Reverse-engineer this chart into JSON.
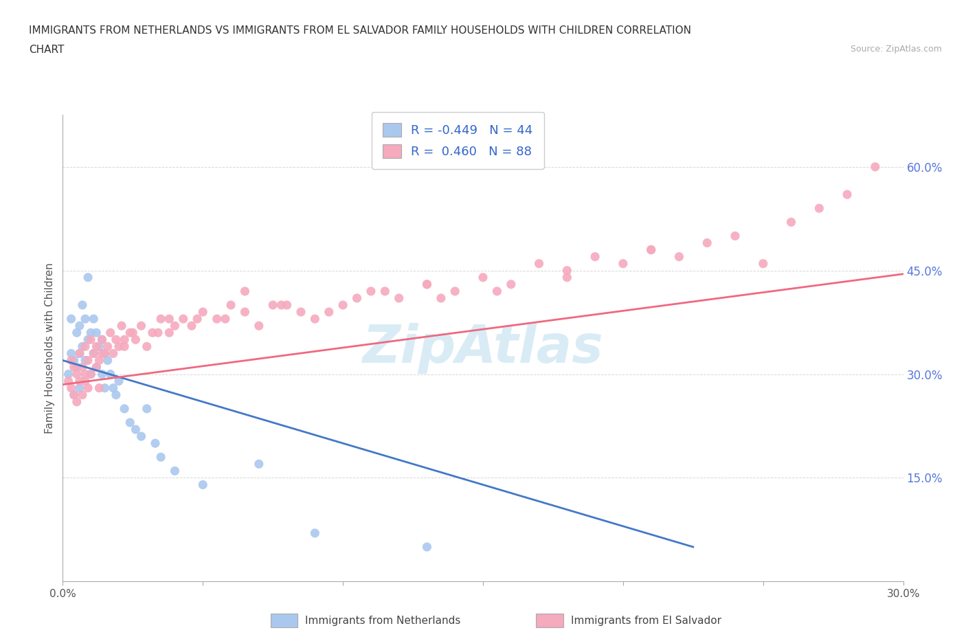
{
  "title_line1": "IMMIGRANTS FROM NETHERLANDS VS IMMIGRANTS FROM EL SALVADOR FAMILY HOUSEHOLDS WITH CHILDREN CORRELATION",
  "title_line2": "CHART",
  "source": "Source: ZipAtlas.com",
  "ylabel": "Family Households with Children",
  "xlim": [
    0.0,
    0.3
  ],
  "ylim": [
    0.0,
    0.675
  ],
  "xticks": [
    0.0,
    0.05,
    0.1,
    0.15,
    0.2,
    0.25,
    0.3
  ],
  "yticks": [
    0.15,
    0.3,
    0.45,
    0.6
  ],
  "legend_r1": "R = -0.449",
  "legend_n1": "N = 44",
  "legend_r2": "R =  0.460",
  "legend_n2": "N = 88",
  "color_netherlands": "#aac8ee",
  "color_el_salvador": "#f5aabe",
  "color_line_netherlands": "#4478c8",
  "color_line_el_salvador": "#f06880",
  "watermark": "ZipAtlas",
  "nl_line_x0": 0.0,
  "nl_line_y0": 0.32,
  "nl_line_x1": 0.225,
  "nl_line_y1": 0.05,
  "sv_line_x0": 0.0,
  "sv_line_y0": 0.285,
  "sv_line_x1": 0.3,
  "sv_line_y1": 0.445,
  "netherlands_x": [
    0.002,
    0.003,
    0.003,
    0.004,
    0.004,
    0.005,
    0.005,
    0.006,
    0.006,
    0.006,
    0.007,
    0.007,
    0.008,
    0.008,
    0.009,
    0.009,
    0.01,
    0.01,
    0.011,
    0.011,
    0.012,
    0.012,
    0.013,
    0.014,
    0.014,
    0.015,
    0.015,
    0.016,
    0.017,
    0.018,
    0.019,
    0.02,
    0.022,
    0.024,
    0.026,
    0.028,
    0.03,
    0.033,
    0.035,
    0.04,
    0.05,
    0.07,
    0.09,
    0.13
  ],
  "netherlands_y": [
    0.3,
    0.33,
    0.38,
    0.32,
    0.27,
    0.36,
    0.31,
    0.37,
    0.33,
    0.28,
    0.4,
    0.34,
    0.38,
    0.32,
    0.44,
    0.35,
    0.36,
    0.3,
    0.38,
    0.33,
    0.36,
    0.31,
    0.34,
    0.35,
    0.3,
    0.33,
    0.28,
    0.32,
    0.3,
    0.28,
    0.27,
    0.29,
    0.25,
    0.23,
    0.22,
    0.21,
    0.25,
    0.2,
    0.18,
    0.16,
    0.14,
    0.17,
    0.07,
    0.05
  ],
  "el_salvador_x": [
    0.002,
    0.003,
    0.003,
    0.004,
    0.005,
    0.005,
    0.006,
    0.006,
    0.007,
    0.007,
    0.008,
    0.008,
    0.009,
    0.009,
    0.01,
    0.01,
    0.011,
    0.012,
    0.013,
    0.013,
    0.014,
    0.015,
    0.016,
    0.017,
    0.018,
    0.019,
    0.02,
    0.021,
    0.022,
    0.024,
    0.026,
    0.028,
    0.03,
    0.032,
    0.035,
    0.038,
    0.04,
    0.043,
    0.046,
    0.05,
    0.055,
    0.06,
    0.065,
    0.07,
    0.075,
    0.08,
    0.09,
    0.1,
    0.11,
    0.12,
    0.13,
    0.14,
    0.15,
    0.16,
    0.17,
    0.18,
    0.19,
    0.2,
    0.21,
    0.22,
    0.23,
    0.24,
    0.25,
    0.26,
    0.27,
    0.28,
    0.29,
    0.21,
    0.18,
    0.155,
    0.13,
    0.105,
    0.085,
    0.065,
    0.048,
    0.034,
    0.022,
    0.014,
    0.008,
    0.004,
    0.012,
    0.025,
    0.038,
    0.058,
    0.078,
    0.095,
    0.115,
    0.135
  ],
  "el_salvador_y": [
    0.29,
    0.32,
    0.28,
    0.31,
    0.3,
    0.26,
    0.33,
    0.29,
    0.31,
    0.27,
    0.34,
    0.3,
    0.32,
    0.28,
    0.35,
    0.3,
    0.33,
    0.34,
    0.32,
    0.28,
    0.35,
    0.33,
    0.34,
    0.36,
    0.33,
    0.35,
    0.34,
    0.37,
    0.35,
    0.36,
    0.35,
    0.37,
    0.34,
    0.36,
    0.38,
    0.36,
    0.37,
    0.38,
    0.37,
    0.39,
    0.38,
    0.4,
    0.39,
    0.37,
    0.4,
    0.4,
    0.38,
    0.4,
    0.42,
    0.41,
    0.43,
    0.42,
    0.44,
    0.43,
    0.46,
    0.45,
    0.47,
    0.46,
    0.48,
    0.47,
    0.49,
    0.5,
    0.46,
    0.52,
    0.54,
    0.56,
    0.6,
    0.48,
    0.44,
    0.42,
    0.43,
    0.41,
    0.39,
    0.42,
    0.38,
    0.36,
    0.34,
    0.33,
    0.29,
    0.27,
    0.31,
    0.36,
    0.38,
    0.38,
    0.4,
    0.39,
    0.42,
    0.41
  ]
}
